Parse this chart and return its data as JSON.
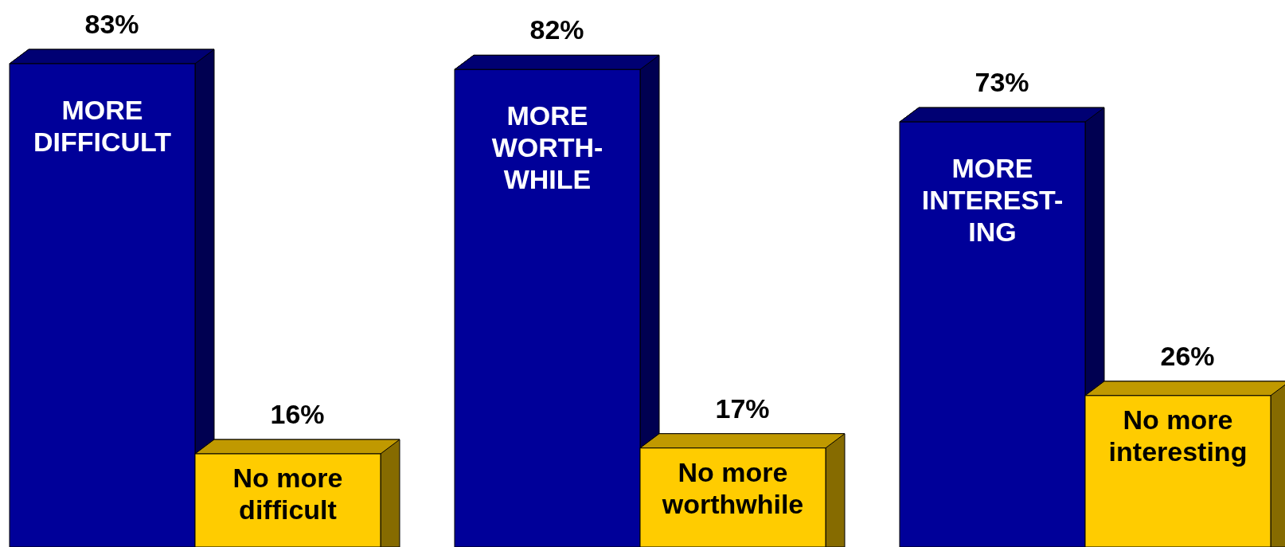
{
  "chart_data": {
    "type": "bar",
    "categories": [
      "MORE\nDIFFICULT",
      "No more\ndifficult",
      "MORE\nWORTH-\nWHILE",
      "No more\nworthwhile",
      "MORE\nINTEREST-\nING",
      "No more\ninteresting"
    ],
    "values": [
      83,
      16,
      82,
      17,
      73,
      26
    ],
    "value_labels": [
      "83%",
      "16%",
      "82%",
      "17%",
      "73%",
      "26%"
    ],
    "colors": [
      "#000099",
      "#ffcc00",
      "#000099",
      "#ffcc00",
      "#000099",
      "#ffcc00"
    ]
  }
}
